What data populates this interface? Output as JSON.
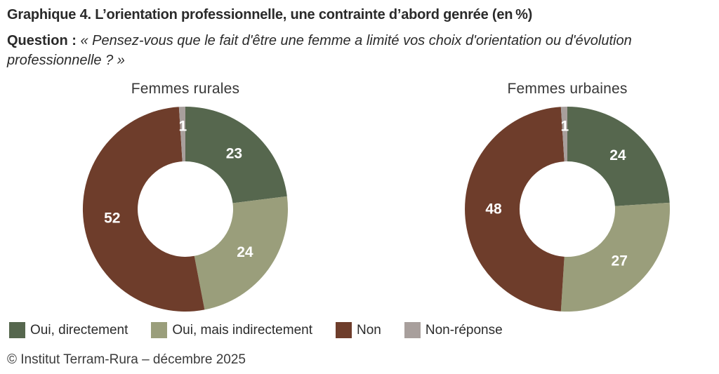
{
  "title": {
    "prefix": "Graphique 4.",
    "text": "L’orientation professionnelle, une contrainte d’abord genrée (en %)"
  },
  "question": {
    "label": "Question :",
    "text": "« Pensez-vous que le fait d'être une femme a limité vos choix d'orientation ou d'évolution professionnelle ? »"
  },
  "colors": {
    "palette": [
      "#56674E",
      "#9A9E7B",
      "#6E3D2B",
      "#A89F9C"
    ],
    "value_label": "#FFFFFF"
  },
  "legend": {
    "items": [
      {
        "label": "Oui, directement"
      },
      {
        "label": "Oui, mais indirectement"
      },
      {
        "label": "Non"
      },
      {
        "label": "Non-réponse"
      }
    ]
  },
  "chart_data": [
    {
      "type": "pie",
      "subtype": "donut",
      "title": "Femmes rurales",
      "unit": "%",
      "categories": [
        "Oui, directement",
        "Oui, mais indirectement",
        "Non",
        "Non-réponse"
      ],
      "values": [
        23,
        24,
        52,
        1
      ],
      "start_angle_deg": 0,
      "direction": "clockwise",
      "legend_position": "bottom"
    },
    {
      "type": "pie",
      "subtype": "donut",
      "title": "Femmes urbaines",
      "unit": "%",
      "categories": [
        "Oui, directement",
        "Oui, mais indirectement",
        "Non",
        "Non-réponse"
      ],
      "values": [
        24,
        27,
        48,
        1
      ],
      "start_angle_deg": 0,
      "direction": "clockwise",
      "legend_position": "bottom"
    }
  ],
  "footer": {
    "credit": "© Institut Terram-Rura – décembre 2025"
  }
}
